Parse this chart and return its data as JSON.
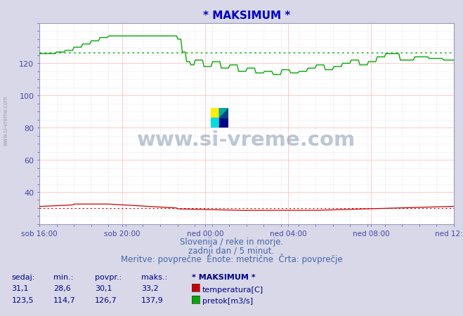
{
  "title": "* MAKSIMUM *",
  "title_color": "#0000cc",
  "bg_color": "#d8d8e8",
  "plot_bg_color": "#ffffff",
  "grid_color_major": "#ffbbbb",
  "grid_color_minor": "#e8e8f8",
  "tick_color": "#4444aa",
  "ylim": [
    20,
    145
  ],
  "yticks": [
    40,
    60,
    80,
    100,
    120
  ],
  "xtick_labels": [
    "sob 16:00",
    "sob 20:00",
    "ned 00:00",
    "ned 04:00",
    "ned 08:00",
    "ned 12:00"
  ],
  "subtitle1": "Slovenija / reke in morje.",
  "subtitle2": "zadnji dan / 5 minut.",
  "subtitle3": "Meritve: povprečne  Enote: metrične  Črta: povprečje",
  "subtitle_color": "#4466aa",
  "watermark": "www.si-vreme.com",
  "watermark_color": "#1a3a6a",
  "watermark_alpha": 0.28,
  "temp_color": "#cc0000",
  "flow_color": "#00aa00",
  "avg_flow_value": 126.7,
  "avg_temp_value": 30.1,
  "legend_entries": [
    "temperatura[C]",
    "pretok[m3/s]"
  ],
  "legend_colors": [
    "#cc0000",
    "#00aa00"
  ],
  "table_headers": [
    "sedaj:",
    "min.:",
    "povpr.:",
    "maks.:",
    "* MAKSIMUM *"
  ],
  "table_temp": [
    "31,1",
    "28,6",
    "30,1",
    "33,2"
  ],
  "table_flow": [
    "123,5",
    "114,7",
    "126,7",
    "137,9"
  ],
  "n_points": 288
}
